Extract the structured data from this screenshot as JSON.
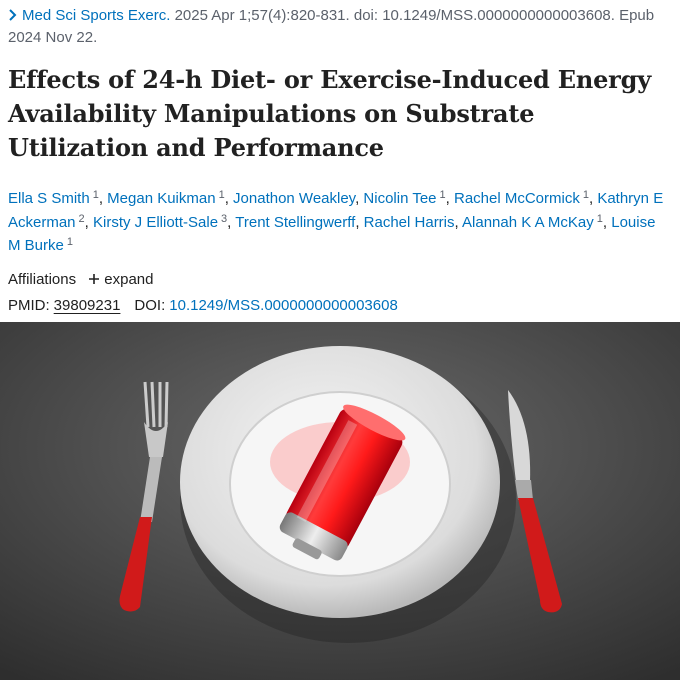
{
  "citation": {
    "journal": "Med Sci Sports Exerc.",
    "details": "2025 Apr 1;57(4):820-831. doi: 10.1249/MSS.0000000000003608. Epub 2024 Nov 22."
  },
  "title": "Effects of 24-h Diet- or Exercise-Induced Energy Availability Manipulations on Substrate Utilization and Performance",
  "authors": {
    "separator": ",",
    "list": [
      {
        "name": "Ella S Smith",
        "aff": "1"
      },
      {
        "name": "Megan Kuikman",
        "aff": "1"
      },
      {
        "name": "Jonathon Weakley"
      },
      {
        "name": "Nicolin Tee",
        "aff": "1"
      },
      {
        "name": "Rachel McCormick",
        "aff": "1"
      },
      {
        "name": "Kathryn E Ackerman",
        "aff": "2"
      },
      {
        "name": "Kirsty J Elliott-Sale",
        "aff": "3"
      },
      {
        "name": "Trent Stellingwerff"
      },
      {
        "name": "Rachel Harris"
      },
      {
        "name": "Alannah K A McKay",
        "aff": "1"
      },
      {
        "name": "Louise M Burke",
        "aff": "1"
      }
    ]
  },
  "affiliations": {
    "label": "Affiliations",
    "toggle": "expand"
  },
  "ids": {
    "pmid_label": "PMID:",
    "pmid": "39809231",
    "doi_label": "DOI:",
    "doi": "10.1249/MSS.0000000000003608"
  }
}
